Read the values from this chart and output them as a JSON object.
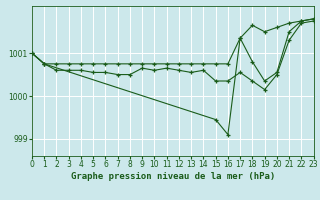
{
  "title": "Graphe pression niveau de la mer (hPa)",
  "bg_color": "#cce8eb",
  "grid_color": "#b8d8dc",
  "line_color": "#1a5c1a",
  "xlim": [
    0,
    23
  ],
  "ylim": [
    998.6,
    1002.1
  ],
  "yticks": [
    999,
    1000,
    1001
  ],
  "xticks": [
    0,
    1,
    2,
    3,
    4,
    5,
    6,
    7,
    8,
    9,
    10,
    11,
    12,
    13,
    14,
    15,
    16,
    17,
    18,
    19,
    20,
    21,
    22,
    23
  ],
  "series_top_x": [
    0,
    1,
    2,
    3,
    4,
    5,
    6,
    7,
    8,
    9,
    10,
    11,
    12,
    13,
    14,
    15,
    16,
    17,
    18,
    19,
    20,
    21,
    22,
    23
  ],
  "series_top_y": [
    1001.0,
    1000.75,
    1000.75,
    1000.75,
    1000.75,
    1000.75,
    1000.75,
    1000.75,
    1000.75,
    1000.75,
    1000.75,
    1000.75,
    1000.75,
    1000.75,
    1000.75,
    1000.75,
    1000.75,
    1001.35,
    1001.65,
    1001.5,
    1001.6,
    1001.7,
    1001.75,
    1001.8
  ],
  "series_mid_x": [
    0,
    1,
    2,
    3,
    4,
    5,
    6,
    7,
    8,
    9,
    10,
    11,
    12,
    13,
    14,
    15,
    16,
    17,
    18,
    19,
    20,
    21,
    22,
    23
  ],
  "series_mid_y": [
    1001.0,
    1000.75,
    1000.6,
    1000.6,
    1000.6,
    1000.55,
    1000.55,
    1000.5,
    1000.5,
    1000.65,
    1000.6,
    1000.65,
    1000.6,
    1000.55,
    1000.6,
    1000.35,
    1000.35,
    1000.55,
    1000.35,
    1000.15,
    1000.5,
    1001.3,
    1001.7,
    1001.75
  ],
  "series_bot_x": [
    0,
    1,
    15,
    16,
    17,
    18,
    19,
    20,
    21,
    22,
    23
  ],
  "series_bot_y": [
    1001.0,
    1000.75,
    999.45,
    999.1,
    1001.35,
    1000.8,
    1000.35,
    1000.55,
    1001.5,
    1001.75,
    1001.8
  ],
  "font_size_label": 6.5,
  "font_size_tick": 5.5
}
